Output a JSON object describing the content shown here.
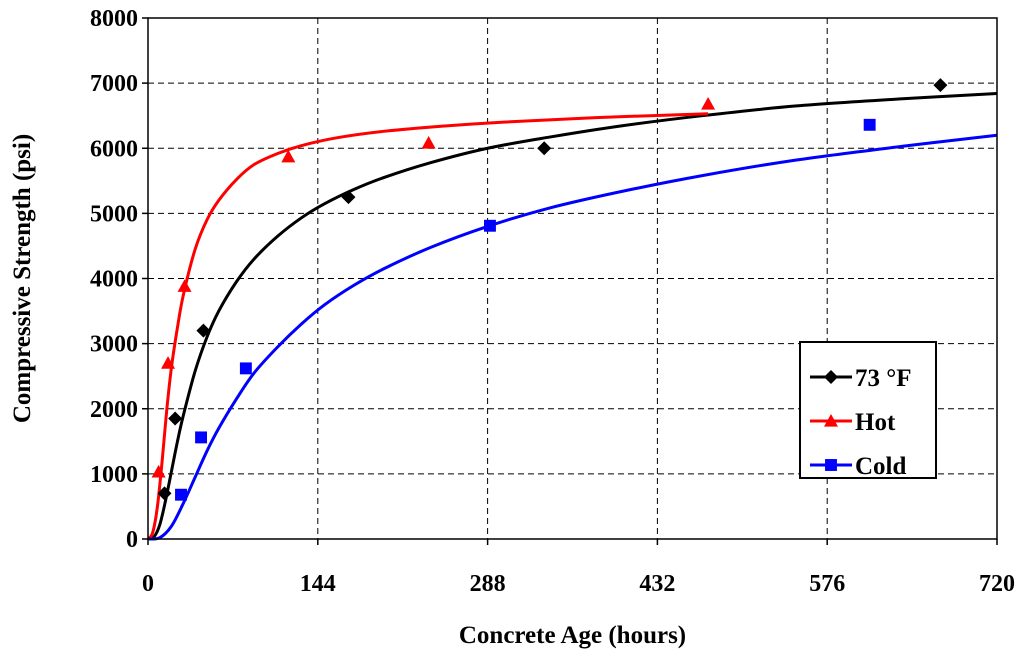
{
  "chart_data": {
    "type": "scatter",
    "title": "",
    "xlabel": "Concrete Age (hours)",
    "ylabel": "Compressive Strength (psi)",
    "xlim": [
      0,
      720
    ],
    "ylim": [
      0,
      8000
    ],
    "xticks": [
      0,
      144,
      288,
      432,
      576,
      720
    ],
    "yticks": [
      0,
      1000,
      2000,
      3000,
      4000,
      5000,
      6000,
      7000,
      8000
    ],
    "grid": true,
    "legend_position": "bottom-right",
    "series": [
      {
        "name": "73 °F",
        "color": "#000000",
        "marker": "diamond",
        "points": [
          [
            14,
            700
          ],
          [
            23,
            1850
          ],
          [
            47,
            3200
          ],
          [
            170,
            5250
          ],
          [
            336,
            6000
          ],
          [
            672,
            6970
          ]
        ],
        "fit": [
          [
            0,
            0
          ],
          [
            5,
            30
          ],
          [
            10,
            220
          ],
          [
            15,
            600
          ],
          [
            20,
            1050
          ],
          [
            25,
            1500
          ],
          [
            30,
            1900
          ],
          [
            40,
            2580
          ],
          [
            50,
            3100
          ],
          [
            60,
            3500
          ],
          [
            75,
            3950
          ],
          [
            90,
            4300
          ],
          [
            110,
            4650
          ],
          [
            130,
            4930
          ],
          [
            150,
            5150
          ],
          [
            175,
            5370
          ],
          [
            200,
            5550
          ],
          [
            240,
            5780
          ],
          [
            288,
            6000
          ],
          [
            340,
            6170
          ],
          [
            400,
            6340
          ],
          [
            470,
            6500
          ],
          [
            550,
            6650
          ],
          [
            640,
            6760
          ],
          [
            720,
            6840
          ]
        ]
      },
      {
        "name": "Hot",
        "color": "#ff0000",
        "marker": "triangle",
        "points": [
          [
            9,
            1030
          ],
          [
            17,
            2700
          ],
          [
            31,
            3880
          ],
          [
            119,
            5870
          ],
          [
            238,
            6080
          ],
          [
            475,
            6680
          ]
        ],
        "fit": [
          [
            0,
            0
          ],
          [
            4,
            100
          ],
          [
            8,
            500
          ],
          [
            12,
            1200
          ],
          [
            16,
            2000
          ],
          [
            20,
            2650
          ],
          [
            25,
            3250
          ],
          [
            30,
            3750
          ],
          [
            40,
            4450
          ],
          [
            50,
            4900
          ],
          [
            60,
            5200
          ],
          [
            75,
            5520
          ],
          [
            90,
            5750
          ],
          [
            110,
            5920
          ],
          [
            130,
            6040
          ],
          [
            160,
            6160
          ],
          [
            200,
            6260
          ],
          [
            250,
            6340
          ],
          [
            300,
            6400
          ],
          [
            380,
            6470
          ],
          [
            475,
            6530
          ]
        ]
      },
      {
        "name": "Cold",
        "color": "#0000ff",
        "marker": "square",
        "points": [
          [
            28,
            680
          ],
          [
            45,
            1560
          ],
          [
            83,
            2620
          ],
          [
            290,
            4810
          ],
          [
            612,
            6360
          ]
        ],
        "fit": [
          [
            0,
            0
          ],
          [
            10,
            20
          ],
          [
            20,
            200
          ],
          [
            30,
            550
          ],
          [
            40,
            950
          ],
          [
            50,
            1350
          ],
          [
            60,
            1700
          ],
          [
            75,
            2150
          ],
          [
            90,
            2550
          ],
          [
            110,
            2950
          ],
          [
            130,
            3300
          ],
          [
            150,
            3600
          ],
          [
            175,
            3900
          ],
          [
            200,
            4150
          ],
          [
            240,
            4480
          ],
          [
            288,
            4800
          ],
          [
            340,
            5080
          ],
          [
            400,
            5330
          ],
          [
            470,
            5580
          ],
          [
            550,
            5820
          ],
          [
            640,
            6030
          ],
          [
            720,
            6200
          ]
        ]
      }
    ]
  }
}
